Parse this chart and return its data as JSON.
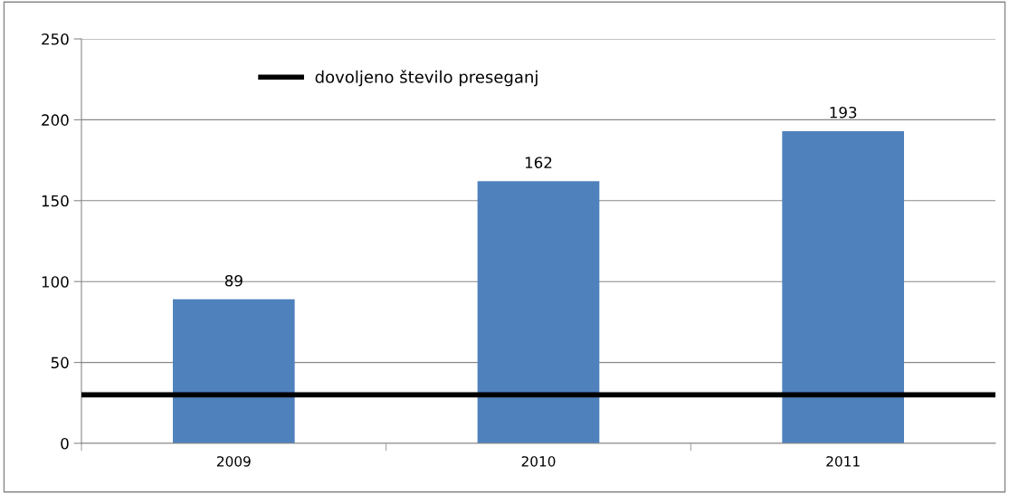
{
  "chart_data": {
    "type": "bar",
    "categories": [
      "2009",
      "2010",
      "2011"
    ],
    "values": [
      89,
      162,
      193
    ],
    "color": "#4f81bd",
    "data_labels": true,
    "ylim": [
      0,
      250
    ],
    "yticks": [
      0,
      50,
      100,
      150,
      200,
      250
    ],
    "grid": "y",
    "legend": "top left",
    "ref_lines": [
      {
        "axis": "y",
        "value": 30,
        "label": "dovoljeno število preseganj",
        "color": "#000000",
        "line_style": "solid"
      }
    ]
  }
}
